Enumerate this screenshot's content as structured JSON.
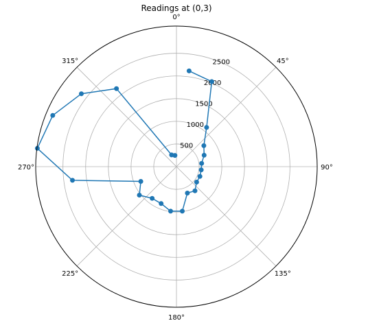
{
  "chart_data": {
    "type": "line",
    "projection": "polar",
    "title": "Readings at (0,3)",
    "theta_zero_location": "top",
    "theta_direction": "clockwise",
    "theta_unit": "degrees",
    "theta_ticks": [
      0,
      45,
      90,
      135,
      180,
      225,
      270,
      315
    ],
    "theta_tick_labels": [
      "0°",
      "45°",
      "90°",
      "135°",
      "180°",
      "225°",
      "270°",
      "315°"
    ],
    "r_ticks": [
      500,
      1000,
      1500,
      2000,
      2500
    ],
    "r_tick_labels": [
      "500",
      "1000",
      "1500",
      "2000",
      "2500"
    ],
    "r_max": 3100,
    "grid": true,
    "series_color": "#1f77b4",
    "series": [
      {
        "theta": [
          7.5,
          22.5,
          37.5,
          52.5,
          67.5,
          82.5,
          97.5,
          112.5,
          127.5,
          142.5,
          157.5,
          172.5,
          187.5,
          202.5,
          217.5,
          232.5,
          247.5,
          262.5,
          277.5,
          292.5,
          307.5,
          322.5,
          337.5,
          352.5
        ],
        "r": [
          2130,
          2030,
          1090,
          760,
          660,
          560,
          550,
          560,
          560,
          670,
          630,
          990,
          990,
          880,
          880,
          1030,
          850,
          2310,
          3090,
          2950,
          2640,
          2170,
          280,
          250
        ]
      }
    ]
  }
}
